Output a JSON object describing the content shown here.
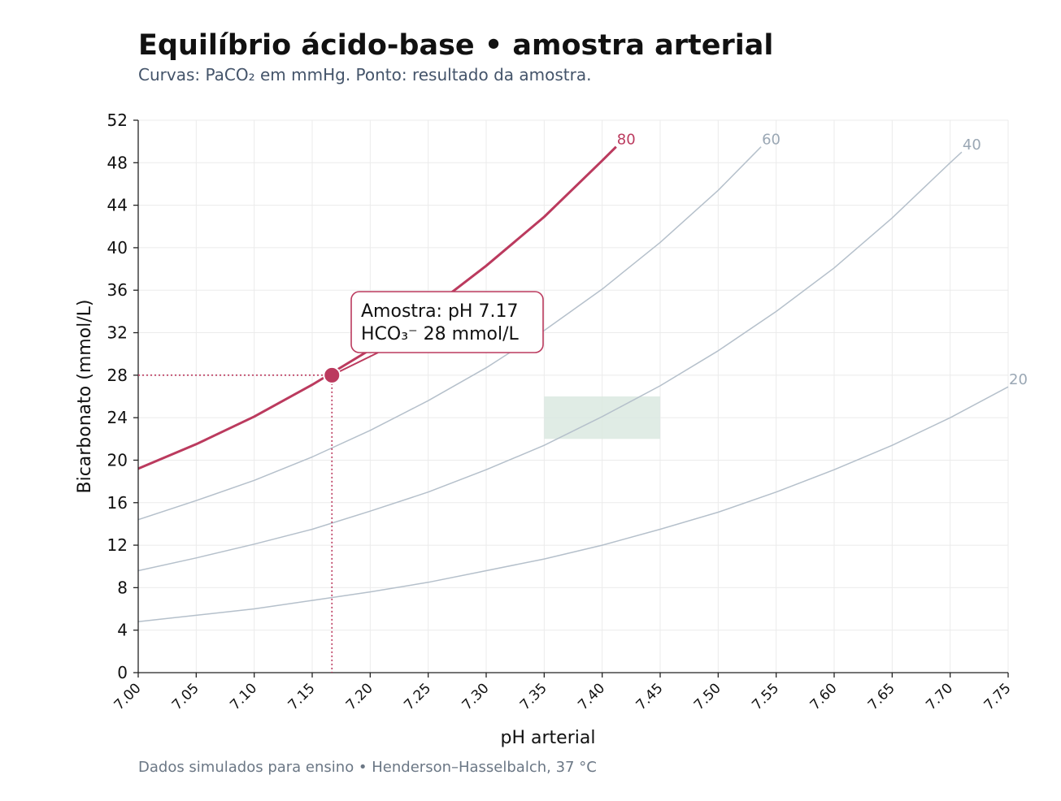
{
  "title": "Equilíbrio ácido-base • amostra arterial",
  "subtitle": "Curvas: PaCO₂ em mmHg. Ponto: resultado da amostra.",
  "footer": "Dados simulados para ensino • Henderson–Hasselbalch, 37 °C",
  "chart_data": {
    "type": "line",
    "xlabel": "pH arterial",
    "ylabel": "Bicarbonato (mmol/L)",
    "xlim": [
      7.0,
      7.75
    ],
    "ylim": [
      0,
      52
    ],
    "x_ticks": [
      "7.00",
      "7.05",
      "7.10",
      "7.15",
      "7.20",
      "7.25",
      "7.30",
      "7.35",
      "7.40",
      "7.45",
      "7.50",
      "7.55",
      "7.60",
      "7.65",
      "7.70",
      "7.75"
    ],
    "y_ticks": [
      "0",
      "4",
      "8",
      "12",
      "16",
      "20",
      "24",
      "28",
      "32",
      "36",
      "40",
      "44",
      "48",
      "52"
    ],
    "grid": true,
    "series": [
      {
        "name": "80",
        "pco2": 80,
        "color": "#bb3a5e",
        "highlight": true,
        "x": [
          7.0,
          7.05,
          7.1,
          7.15,
          7.2,
          7.25,
          7.3,
          7.35,
          7.4,
          7.412
        ],
        "y": [
          19.2,
          21.5,
          24.1,
          27.1,
          30.4,
          34.1,
          38.3,
          42.9,
          48.2,
          49.5
        ]
      },
      {
        "name": "60",
        "pco2": 60,
        "color": "#b5c0cb",
        "highlight": false,
        "x": [
          7.0,
          7.05,
          7.1,
          7.15,
          7.2,
          7.25,
          7.3,
          7.35,
          7.4,
          7.45,
          7.5,
          7.537
        ],
        "y": [
          14.4,
          16.2,
          18.1,
          20.3,
          22.8,
          25.6,
          28.7,
          32.2,
          36.1,
          40.5,
          45.4,
          49.5
        ]
      },
      {
        "name": "40",
        "pco2": 40,
        "color": "#b5c0cb",
        "highlight": false,
        "x": [
          7.0,
          7.05,
          7.1,
          7.15,
          7.2,
          7.25,
          7.3,
          7.35,
          7.4,
          7.45,
          7.5,
          7.55,
          7.6,
          7.65,
          7.7,
          7.71
        ],
        "y": [
          9.6,
          10.8,
          12.1,
          13.5,
          15.2,
          17.0,
          19.1,
          21.4,
          24.1,
          27.0,
          30.3,
          34.0,
          38.1,
          42.8,
          48.0,
          49.0
        ]
      },
      {
        "name": "20",
        "pco2": 20,
        "color": "#b5c0cb",
        "highlight": false,
        "x": [
          7.0,
          7.05,
          7.1,
          7.15,
          7.2,
          7.25,
          7.3,
          7.35,
          7.4,
          7.45,
          7.5,
          7.55,
          7.6,
          7.65,
          7.7,
          7.75
        ],
        "y": [
          4.8,
          5.4,
          6.0,
          6.8,
          7.6,
          8.5,
          9.6,
          10.7,
          12.0,
          13.5,
          15.1,
          17.0,
          19.1,
          21.4,
          24.0,
          26.9
        ]
      }
    ],
    "normal_range": {
      "x": [
        7.35,
        7.45
      ],
      "y": [
        22,
        26
      ],
      "color": "#dbe9e0"
    },
    "sample": {
      "ph": 7.167,
      "hco3": 28,
      "label_line1": "Amostra: pH 7.17",
      "label_line2": "HCO₃⁻ 28 mmol/L",
      "color": "#bb3a5e"
    }
  }
}
